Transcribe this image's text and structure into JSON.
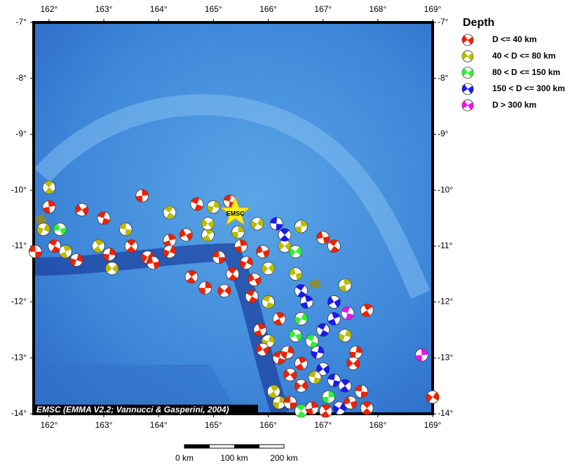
{
  "map": {
    "lon_range": [
      161.72,
      169
    ],
    "lat_range": [
      -7,
      -14
    ],
    "lon_ticks": [
      {
        "value": 162,
        "label": "162°"
      },
      {
        "value": 163,
        "label": "163°"
      },
      {
        "value": 164,
        "label": "164°"
      },
      {
        "value": 165,
        "label": "165°"
      },
      {
        "value": 166,
        "label": "166°"
      },
      {
        "value": 167,
        "label": "167°"
      },
      {
        "value": 168,
        "label": "168°"
      },
      {
        "value": 169,
        "label": "169°"
      }
    ],
    "lat_ticks": [
      {
        "value": -7,
        "label": "-7°"
      },
      {
        "value": -8,
        "label": "-8°"
      },
      {
        "value": -9,
        "label": "-9°"
      },
      {
        "value": -10,
        "label": "-10°"
      },
      {
        "value": -11,
        "label": "-11°"
      },
      {
        "value": -12,
        "label": "-12°"
      },
      {
        "value": -13,
        "label": "-13°"
      },
      {
        "value": -14,
        "label": "-14°"
      }
    ],
    "marker": {
      "label": "EMSC",
      "lon": 165.4,
      "lat": -10.4
    },
    "credit": "EMSC (EMMA V2.2; Vannucci & Gasperini, 2004)",
    "scale_labels": [
      "0 km",
      "100 km",
      "200 km"
    ],
    "events": [
      [
        161.75,
        -11.1,
        0
      ],
      [
        162.0,
        -9.95,
        1
      ],
      [
        162.0,
        -10.3,
        0
      ],
      [
        161.9,
        -10.7,
        1
      ],
      [
        162.2,
        -10.7,
        2
      ],
      [
        162.1,
        -11.0,
        0
      ],
      [
        162.3,
        -11.1,
        1
      ],
      [
        162.5,
        -11.25,
        0
      ],
      [
        162.6,
        -10.35,
        0
      ],
      [
        163.0,
        -10.5,
        0
      ],
      [
        162.9,
        -11.0,
        1
      ],
      [
        163.1,
        -11.15,
        0
      ],
      [
        163.15,
        -11.4,
        1
      ],
      [
        163.4,
        -10.7,
        1
      ],
      [
        163.5,
        -11.0,
        0
      ],
      [
        163.7,
        -10.1,
        0
      ],
      [
        163.8,
        -11.2,
        0
      ],
      [
        163.9,
        -11.3,
        0
      ],
      [
        164.2,
        -10.4,
        1
      ],
      [
        164.2,
        -10.9,
        0
      ],
      [
        164.2,
        -11.1,
        0
      ],
      [
        164.5,
        -10.8,
        0
      ],
      [
        164.7,
        -10.25,
        0
      ],
      [
        164.9,
        -10.8,
        1
      ],
      [
        165.0,
        -10.3,
        1
      ],
      [
        164.9,
        -10.6,
        1
      ],
      [
        165.3,
        -10.2,
        0
      ],
      [
        164.6,
        -11.55,
        0
      ],
      [
        164.85,
        -11.75,
        0
      ],
      [
        165.2,
        -11.8,
        0
      ],
      [
        165.1,
        -11.2,
        0
      ],
      [
        165.35,
        -11.5,
        0
      ],
      [
        165.5,
        -11.0,
        0
      ],
      [
        165.8,
        -10.6,
        1
      ],
      [
        165.9,
        -11.1,
        0
      ],
      [
        165.7,
        -11.9,
        0
      ],
      [
        165.85,
        -12.5,
        0
      ],
      [
        166.0,
        -12.7,
        1
      ],
      [
        165.9,
        -12.85,
        0
      ],
      [
        166.2,
        -13.0,
        0
      ],
      [
        166.1,
        -13.6,
        1
      ],
      [
        166.2,
        -13.8,
        1
      ],
      [
        166.3,
        -11.0,
        1
      ],
      [
        166.15,
        -10.6,
        3
      ],
      [
        166.3,
        -10.8,
        3
      ],
      [
        166.6,
        -10.65,
        1
      ],
      [
        166.5,
        -11.1,
        2
      ],
      [
        166.5,
        -11.5,
        1
      ],
      [
        166.6,
        -11.8,
        3
      ],
      [
        166.7,
        -12.0,
        3
      ],
      [
        166.6,
        -12.3,
        2
      ],
      [
        166.5,
        -12.6,
        2
      ],
      [
        166.8,
        -12.7,
        2
      ],
      [
        166.6,
        -13.1,
        0
      ],
      [
        166.9,
        -12.9,
        3
      ],
      [
        167.0,
        -13.2,
        3
      ],
      [
        167.2,
        -13.4,
        3
      ],
      [
        167.4,
        -13.5,
        3
      ],
      [
        167.1,
        -13.7,
        2
      ],
      [
        166.6,
        -13.5,
        0
      ],
      [
        166.4,
        -13.8,
        0
      ],
      [
        166.6,
        -13.95,
        2
      ],
      [
        166.8,
        -13.9,
        0
      ],
      [
        167.3,
        -13.9,
        3
      ],
      [
        167.5,
        -13.8,
        0
      ],
      [
        167.0,
        -12.5,
        3
      ],
      [
        167.2,
        -12.3,
        3
      ],
      [
        167.4,
        -12.6,
        1
      ],
      [
        167.2,
        -12.0,
        3
      ],
      [
        167.45,
        -12.2,
        4
      ],
      [
        167.8,
        -12.15,
        0
      ],
      [
        167.6,
        -12.9,
        0
      ],
      [
        167.55,
        -13.1,
        0
      ],
      [
        167.7,
        -13.6,
        0
      ],
      [
        167.8,
        -13.9,
        0
      ],
      [
        168.8,
        -12.95,
        4
      ],
      [
        169.0,
        -13.7,
        0
      ],
      [
        167.0,
        -10.85,
        0
      ],
      [
        167.2,
        -11.0,
        0
      ],
      [
        167.4,
        -11.7,
        1
      ],
      [
        165.6,
        -11.3,
        0
      ],
      [
        165.75,
        -11.6,
        0
      ],
      [
        166.0,
        -12.0,
        1
      ],
      [
        166.2,
        -12.3,
        0
      ],
      [
        166.35,
        -12.9,
        0
      ],
      [
        166.4,
        -13.3,
        0
      ],
      [
        166.85,
        -13.35,
        1
      ],
      [
        167.05,
        -13.95,
        0
      ],
      [
        165.45,
        -10.75,
        1
      ],
      [
        166.0,
        -11.4,
        1
      ]
    ],
    "depth_classes": [
      {
        "label": "D <= 40 km",
        "color": "#ee2200"
      },
      {
        "label": "40 < D <= 80 km",
        "color": "#bbbb00"
      },
      {
        "label": "80 < D <= 150 km",
        "color": "#33ee33"
      },
      {
        "label": "150 < D <= 300 km",
        "color": "#1a1aee"
      },
      {
        "label": "D > 300 km",
        "color": "#ee11ee"
      }
    ],
    "legend_title": "Depth"
  }
}
